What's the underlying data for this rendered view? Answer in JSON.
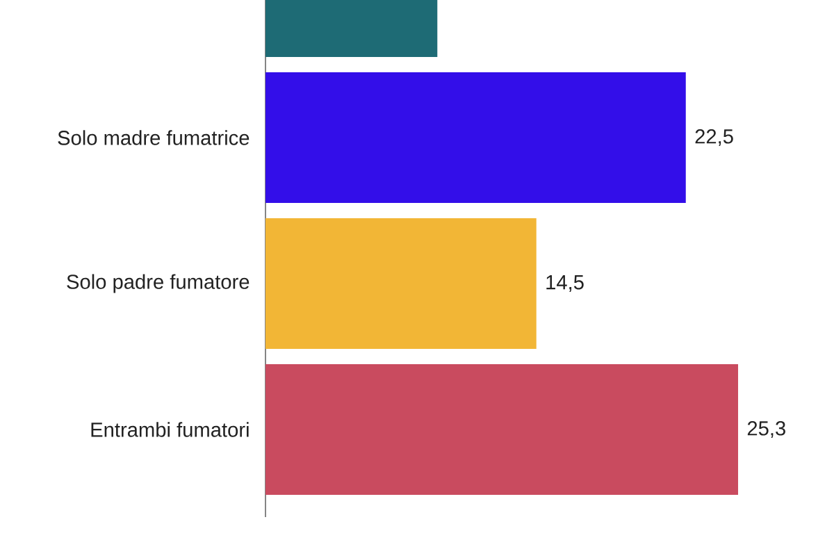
{
  "chart_data": {
    "type": "bar",
    "orientation": "horizontal",
    "categories": [
      null,
      "Solo madre fumatrice",
      "Solo padre fumatore",
      "Entrambi fumatori"
    ],
    "values": [
      9.2,
      22.5,
      14.5,
      25.3
    ],
    "colors": [
      "#1e6b75",
      "#330ee9",
      "#f2b636",
      "#c94b5f"
    ],
    "value_labels": [
      null,
      "22,5",
      "14,5",
      "25,3"
    ]
  }
}
